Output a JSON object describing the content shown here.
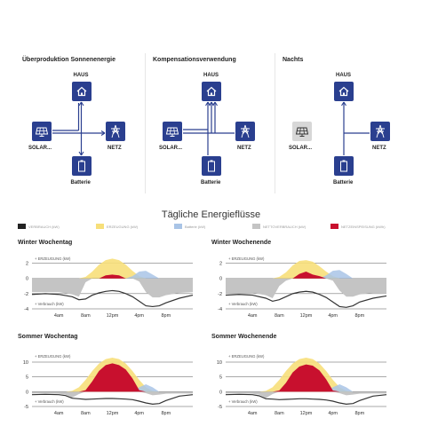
{
  "flow_panels": [
    {
      "title": "Überproduktion Sonnenenergie",
      "nodes": {
        "haus": "HAUS",
        "solar": "SOLAR...",
        "netz": "NETZ",
        "batterie": "Batterie"
      }
    },
    {
      "title": "Kompensationsverwendung",
      "nodes": {
        "haus": "HAUS",
        "solar": "SOLAR...",
        "netz": "NETZ",
        "batterie": "Batterie"
      }
    },
    {
      "title": "Nachts",
      "nodes": {
        "haus": "HAUS",
        "solar": "SOLAR...",
        "netz": "NETZ",
        "batterie": "Batterie"
      }
    }
  ],
  "daily_title": "Tägliche Energieflüsse",
  "legend": [
    {
      "label": "VERBRAUCH (kW)",
      "color": "#222222"
    },
    {
      "label": "ERZEUGUNG (kW)",
      "color": "#f7df7a"
    },
    {
      "label": "Batterie (kW)",
      "color": "#a9c4e6"
    },
    {
      "label": "NETTOVERBRAUCH (kW)",
      "color": "#c4c4c4"
    },
    {
      "label": "NETZEINSPEISUNG (kWh)",
      "color": "#c8102e"
    }
  ],
  "chart_data": [
    {
      "type": "area",
      "title": "Winter Wochentag",
      "upper_label": "+ ERZEUGUNG (kW)",
      "lower_label": "+ Verbrauch (kW)",
      "y_ticks": [
        2,
        0,
        -2,
        -4
      ],
      "ylim": [
        -4,
        3
      ],
      "x_ticks": [
        "4am",
        "8am",
        "12pm",
        "4pm",
        "8pm"
      ],
      "x": [
        0,
        2,
        4,
        6,
        7,
        8,
        9,
        10,
        11,
        12,
        13,
        14,
        15,
        16,
        17,
        18,
        19,
        20,
        22,
        24
      ],
      "series": [
        {
          "name": "ERZEUGUNG (kW)",
          "values": [
            0,
            0,
            0,
            0,
            0,
            0.2,
            0.9,
            1.8,
            2.4,
            2.6,
            2.4,
            1.8,
            1.0,
            0.3,
            0,
            0,
            0,
            0,
            0,
            0
          ]
        },
        {
          "name": "Batterie (kW)",
          "values": [
            0,
            0,
            0,
            0,
            0,
            0,
            0,
            0,
            0,
            0,
            0,
            0,
            0.3,
            0.9,
            1.0,
            0.5,
            0,
            0,
            0,
            0
          ]
        },
        {
          "name": "NETZEINSPEISUNG (kWh)",
          "values": [
            0,
            0,
            0,
            0,
            0,
            0,
            0,
            0,
            0.4,
            0.5,
            0.4,
            0,
            0,
            0,
            0,
            0,
            0,
            0,
            0,
            0
          ]
        },
        {
          "name": "NETTOVERBRAUCH (kW)",
          "values": [
            -1.8,
            -1.8,
            -1.8,
            -2.1,
            -2.4,
            -0.5,
            0,
            0,
            0,
            0,
            0,
            0,
            0,
            -0.4,
            -1.8,
            -2.5,
            -2.5,
            -2.2,
            -1.9,
            -1.8
          ]
        },
        {
          "name": "VERBRAUCH (kW)",
          "values": [
            -2.1,
            -2.0,
            -2.1,
            -2.4,
            -2.8,
            -2.7,
            -2.2,
            -1.9,
            -1.7,
            -1.6,
            -1.7,
            -2.0,
            -2.4,
            -3.0,
            -3.6,
            -3.7,
            -3.6,
            -3.2,
            -2.6,
            -2.2
          ]
        }
      ]
    },
    {
      "type": "area",
      "title": "Winter Wochenende",
      "upper_label": "+ ERZEUGUNG (kW)",
      "lower_label": "+ Verbrauch (kW)",
      "y_ticks": [
        2,
        0,
        -2,
        -4
      ],
      "ylim": [
        -4,
        3
      ],
      "x_ticks": [
        "4am",
        "8am",
        "12pm",
        "4pm",
        "8pm"
      ],
      "x": [
        0,
        2,
        4,
        6,
        7,
        8,
        9,
        10,
        11,
        12,
        13,
        14,
        15,
        16,
        17,
        18,
        19,
        20,
        22,
        24
      ],
      "series": [
        {
          "name": "ERZEUGUNG (kW)",
          "values": [
            0,
            0,
            0,
            0,
            0,
            0.2,
            0.8,
            1.7,
            2.3,
            2.4,
            2.2,
            1.6,
            0.9,
            0.3,
            0,
            0,
            0,
            0,
            0,
            0
          ]
        },
        {
          "name": "Batterie (kW)",
          "values": [
            0,
            0,
            0,
            0,
            0,
            0,
            0,
            0,
            0,
            0,
            0,
            0,
            0.4,
            1.0,
            1.1,
            0.6,
            0,
            0,
            0,
            0
          ]
        },
        {
          "name": "NETZEINSPEISUNG (kWh)",
          "values": [
            0,
            0,
            0,
            0,
            0,
            0,
            0,
            0,
            0.6,
            0.9,
            0.5,
            0.3,
            0,
            0,
            0,
            0,
            0,
            0,
            0,
            0
          ]
        },
        {
          "name": "NETTOVERBRAUCH (kW)",
          "values": [
            -1.9,
            -1.9,
            -1.9,
            -2.2,
            -2.6,
            -1.0,
            -0.3,
            0,
            0,
            0,
            0,
            0,
            0,
            -0.3,
            -1.6,
            -2.4,
            -2.4,
            -2.1,
            -1.9,
            -1.9
          ]
        },
        {
          "name": "VERBRAUCH (kW)",
          "values": [
            -2.2,
            -2.1,
            -2.2,
            -2.6,
            -3.0,
            -2.8,
            -2.4,
            -2.0,
            -1.8,
            -1.7,
            -1.8,
            -2.1,
            -2.5,
            -3.1,
            -3.7,
            -3.8,
            -3.6,
            -3.1,
            -2.6,
            -2.3
          ]
        }
      ]
    },
    {
      "type": "area",
      "title": "Sommer Wochentag",
      "upper_label": "+ ERZEUGUNG (kW)",
      "lower_label": "+ Verbrauch (kW)",
      "y_ticks": [
        10,
        5,
        0,
        -5
      ],
      "ylim": [
        -5,
        13
      ],
      "x_ticks": [
        "4am",
        "8am",
        "12pm",
        "4pm",
        "8pm"
      ],
      "x": [
        0,
        2,
        4,
        5,
        6,
        7,
        8,
        9,
        10,
        11,
        12,
        13,
        14,
        15,
        16,
        17,
        18,
        19,
        20,
        22,
        24
      ],
      "series": [
        {
          "name": "ERZEUGUNG (kW)",
          "values": [
            0,
            0,
            0,
            0,
            0.3,
            1.5,
            4.0,
            7.0,
            9.5,
            11.0,
            11.5,
            11.0,
            9.5,
            7.0,
            4.0,
            1.5,
            0.3,
            0,
            0,
            0,
            0
          ]
        },
        {
          "name": "Batterie (kW)",
          "values": [
            0,
            0,
            0,
            0,
            0,
            0,
            0,
            0,
            0,
            0,
            0,
            0,
            0,
            0,
            1.5,
            2.5,
            1.5,
            0,
            0,
            0,
            0
          ]
        },
        {
          "name": "NETZEINSPEISUNG (kWh)",
          "values": [
            0,
            0,
            0,
            0,
            0,
            0,
            0.5,
            3.5,
            7.0,
            9.0,
            9.6,
            9.0,
            7.5,
            4.5,
            0.5,
            0,
            0,
            0,
            0,
            0,
            0
          ]
        },
        {
          "name": "NETTOVERBRAUCH (kW)",
          "values": [
            -0.6,
            -0.6,
            -0.7,
            -1.0,
            -2.0,
            -0.8,
            0,
            0,
            0,
            0,
            0,
            0,
            0,
            0,
            0,
            -0.5,
            -1.2,
            -1.0,
            -0.7,
            -0.6,
            -0.6
          ]
        },
        {
          "name": "VERBRAUCH (kW)",
          "values": [
            -1.0,
            -0.9,
            -1.0,
            -1.3,
            -2.2,
            -2.4,
            -2.6,
            -2.5,
            -2.4,
            -2.3,
            -2.3,
            -2.4,
            -2.5,
            -2.7,
            -3.2,
            -3.8,
            -4.2,
            -4.0,
            -3.0,
            -1.5,
            -1.0
          ]
        }
      ]
    },
    {
      "type": "area",
      "title": "Sommer Wochenende",
      "upper_label": "+ ERZEUGUNG (kW)",
      "lower_label": "+ Verbrauch (kW)",
      "y_ticks": [
        10,
        5,
        0,
        -5
      ],
      "ylim": [
        -5,
        13
      ],
      "x_ticks": [
        "4am",
        "8am",
        "12pm",
        "4pm",
        "8pm"
      ],
      "x": [
        0,
        2,
        4,
        5,
        6,
        7,
        8,
        9,
        10,
        11,
        12,
        13,
        14,
        15,
        16,
        17,
        18,
        19,
        20,
        22,
        24
      ],
      "series": [
        {
          "name": "ERZEUGUNG (kW)",
          "values": [
            0,
            0,
            0,
            0,
            0.3,
            1.5,
            4.0,
            7.0,
            9.5,
            11.0,
            11.5,
            11.0,
            9.5,
            7.0,
            4.0,
            1.5,
            0.3,
            0,
            0,
            0,
            0
          ]
        },
        {
          "name": "Batterie (kW)",
          "values": [
            0,
            0,
            0,
            0,
            0,
            0,
            0,
            0,
            0,
            0,
            0,
            0,
            0,
            0,
            1.5,
            2.5,
            1.5,
            0,
            0,
            0,
            0
          ]
        },
        {
          "name": "NETZEINSPEISUNG (kWh)",
          "values": [
            0,
            0,
            0,
            0,
            0,
            0,
            0.4,
            3.0,
            6.5,
            8.5,
            9.2,
            8.8,
            7.2,
            4.2,
            0.4,
            0,
            0,
            0,
            0,
            0,
            0
          ]
        },
        {
          "name": "NETTOVERBRAUCH (kW)",
          "values": [
            -0.6,
            -0.6,
            -0.7,
            -1.0,
            -2.2,
            -0.8,
            0,
            0,
            0,
            0,
            0,
            0,
            0,
            0,
            0,
            -0.5,
            -1.2,
            -1.0,
            -0.7,
            -0.6,
            -0.6
          ]
        },
        {
          "name": "VERBRAUCH (kW)",
          "values": [
            -1.0,
            -0.9,
            -1.0,
            -1.4,
            -2.4,
            -2.5,
            -2.7,
            -2.6,
            -2.5,
            -2.4,
            -2.4,
            -2.5,
            -2.6,
            -2.8,
            -3.2,
            -3.8,
            -4.2,
            -4.0,
            -3.0,
            -1.5,
            -1.0
          ]
        }
      ]
    }
  ]
}
